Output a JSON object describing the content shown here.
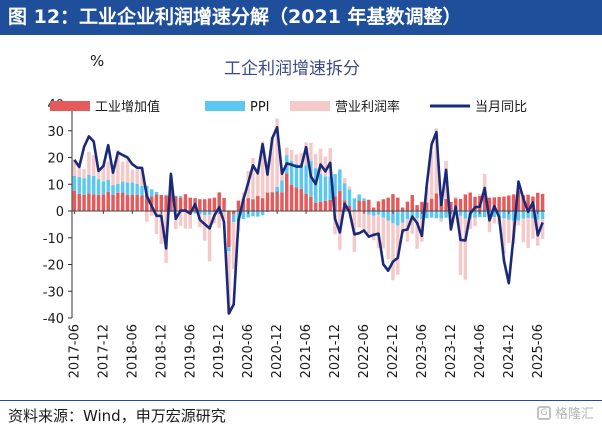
{
  "figure_title": "图 12：工业企业利润增速分解（2021 年基数调整）",
  "source": "资料来源：Wind，申万宏源研究",
  "watermark": "格隆汇",
  "colors": {
    "header": "#1f4e9a",
    "bar_industrial": "#e55a5a",
    "bar_ppi": "#5cc8f0",
    "bar_margin": "#f6c9c9",
    "line": "#1a2a7a"
  },
  "chart_data": {
    "type": "bar",
    "title": "工企利润增速拆分",
    "ylabel": "%",
    "ylim": [
      -40,
      40
    ],
    "yticks": [
      -40,
      -30,
      -20,
      -10,
      0,
      10,
      20,
      30,
      40
    ],
    "xlabels": [
      "2017-06",
      "2017-12",
      "2018-06",
      "2018-12",
      "2019-06",
      "2019-12",
      "2020-06",
      "2020-12",
      "2021-06",
      "2021-12",
      "2022-06",
      "2022-12",
      "2023-06",
      "2023-12",
      "2024-06",
      "2024-12",
      "2025-06"
    ],
    "start_month": "2017-06",
    "legend": {
      "bar_industrial": "工业增加值",
      "bar_ppi": "PPI",
      "bar_margin": "营业利润率",
      "line": "当月同比"
    },
    "series": [
      {
        "name": "工业增加值",
        "type": "bar",
        "values": [
          7.6,
          6.4,
          6.0,
          6.6,
          6.2,
          6.1,
          6.2,
          7.2,
          6.0,
          6.8,
          6.9,
          6.0,
          6.1,
          6.0,
          5.8,
          6.1,
          5.4,
          6.2,
          6.0,
          5.7,
          8.5,
          5.4,
          5.0,
          6.3,
          5.0,
          4.8,
          4.4,
          4.4,
          4.7,
          5.0,
          6.9,
          4.9,
          -13.5,
          -1.1,
          3.9,
          4.4,
          4.8,
          4.4,
          5.6,
          4.8,
          6.9,
          6.9,
          7.3,
          7.0,
          14.1,
          9.8,
          8.8,
          8.3,
          6.4,
          5.3,
          3.1,
          3.5,
          3.8,
          4.2,
          5.5,
          7.5,
          4.0,
          2.0,
          0.5,
          3.9,
          3.8,
          4.2,
          1.3,
          3.6,
          4.4,
          5.0,
          6.3,
          5.0,
          1.3,
          3.5,
          6.0,
          2.2,
          3.4,
          3.2,
          4.6,
          6.6,
          3.8,
          4.5,
          3.4,
          4.7,
          4.5,
          6.2,
          6.9,
          5.3,
          5.6,
          6.7,
          5.0,
          5.1,
          5.3,
          5.4,
          5.8,
          6.2,
          7.7,
          5.9,
          6.1,
          5.4,
          6.8,
          6.4
        ]
      },
      {
        "name": "PPI",
        "type": "bar",
        "values": [
          5.5,
          6.4,
          6.3,
          6.9,
          6.9,
          5.8,
          4.9,
          4.5,
          3.7,
          3.4,
          4.1,
          4.7,
          4.6,
          4.1,
          3.6,
          3.3,
          2.7,
          0.9,
          0.1,
          0.4,
          -0.4,
          0.3,
          0.6,
          0.0,
          -0.3,
          -0.8,
          -1.2,
          -1.6,
          -1.4,
          -0.5,
          0.1,
          -0.4,
          -1.5,
          -3.1,
          -3.7,
          -3.0,
          -2.4,
          -2.0,
          -2.1,
          -1.5,
          -0.4,
          0.3,
          1.7,
          4.4,
          6.8,
          9.0,
          8.8,
          9.5,
          10.7,
          13.5,
          12.9,
          10.3,
          9.1,
          8.8,
          8.3,
          8.0,
          6.4,
          6.1,
          4.2,
          2.3,
          0.9,
          -1.3,
          -1.8,
          -1.4,
          -2.5,
          -3.6,
          -4.6,
          -5.4,
          -4.4,
          -3.0,
          -2.5,
          -2.6,
          -3.0,
          -2.7,
          -2.5,
          -2.7,
          -2.8,
          -2.5,
          -1.4,
          -0.8,
          -1.8,
          -2.8,
          -2.9,
          -2.5,
          -2.3,
          -2.3,
          -2.2,
          -2.3,
          -2.5,
          -2.7,
          -3.3,
          -3.6,
          -3.6,
          -2.9,
          -2.6,
          -2.8,
          -3.2,
          -3.0
        ]
      },
      {
        "name": "营业利润率",
        "type": "bar",
        "values": [
          6.2,
          4.4,
          3.4,
          8.6,
          7.7,
          3.8,
          6.2,
          6.7,
          5.0,
          12.6,
          7.4,
          8.3,
          4.8,
          5.7,
          6.6,
          -4.0,
          -1.8,
          -8.6,
          -12.3,
          -19.4,
          4.3,
          -6.8,
          -5.5,
          -6.6,
          -6.3,
          -0.3,
          -4.8,
          -9.5,
          -17.4,
          -4.1,
          -6.3,
          -2.7,
          -23.6,
          -17.5,
          -4.0,
          2.5,
          10.2,
          15.4,
          9.3,
          21.2,
          11.4,
          20.0,
          25.6,
          3.7,
          2.8,
          4.0,
          3.5,
          3.8,
          8.5,
          6.7,
          5.4,
          9.5,
          7.5,
          10.5,
          -8.7,
          -14.5,
          2.0,
          1.1,
          -15.3,
          -6.2,
          -7.5,
          -8.4,
          -9.1,
          -12.4,
          -11.5,
          -14.4,
          -21.3,
          -18.4,
          -3.9,
          -8.5,
          -6.0,
          -11.5,
          -8.5,
          5.8,
          17.8,
          24.3,
          -1.2,
          14.2,
          -4.0,
          0.6,
          -22.2,
          -22.9,
          -3.8,
          -3.2,
          0.8,
          7.2,
          -5.7,
          -2.3,
          -2.5,
          -13.2,
          -8.7,
          -8.6,
          -1.8,
          -8.8,
          -11.2,
          -7.5,
          -9.8,
          -7.5
        ]
      },
      {
        "name": "当月同比",
        "type": "line",
        "values": [
          19.1,
          16.5,
          24.0,
          27.9,
          26.0,
          15.0,
          16.8,
          24.6,
          14.3,
          21.9,
          20.9,
          20.0,
          17.5,
          16.2,
          16.1,
          5.6,
          1.9,
          -1.8,
          -1.8,
          -14.0,
          13.9,
          -2.9,
          0.1,
          0.2,
          -1.0,
          2.6,
          -3.3,
          -4.9,
          -6.5,
          -1.7,
          1.4,
          -4.1,
          -38.3,
          -34.9,
          -3.5,
          4.2,
          10.5,
          17.1,
          14.1,
          25.0,
          13.6,
          27.2,
          31.3,
          13.9,
          17.8,
          17.3,
          16.6,
          16.6,
          23.9,
          12.9,
          10.1,
          17.4,
          14.8,
          18.0,
          -2.9,
          -8.0,
          2.7,
          -0.3,
          -8.7,
          -8.3,
          -7.3,
          -9.6,
          -8.9,
          -8.5,
          -19.9,
          -22.3,
          -18.9,
          -17.5,
          -7.3,
          -6.9,
          -2.1,
          -4.5,
          -9.3,
          9.8,
          24.9,
          29.5,
          2.2,
          15.4,
          -6.9,
          1.6,
          -10.8,
          -11.0,
          -1.0,
          1.4,
          1.6,
          8.6,
          -3.5,
          1.8,
          -2.2,
          -18.6,
          -27.0,
          -9.4,
          11.0,
          4.7,
          -0.3,
          3.2,
          -9.1,
          -4.3
        ]
      }
    ],
    "grid": false,
    "legend_position": "top"
  }
}
